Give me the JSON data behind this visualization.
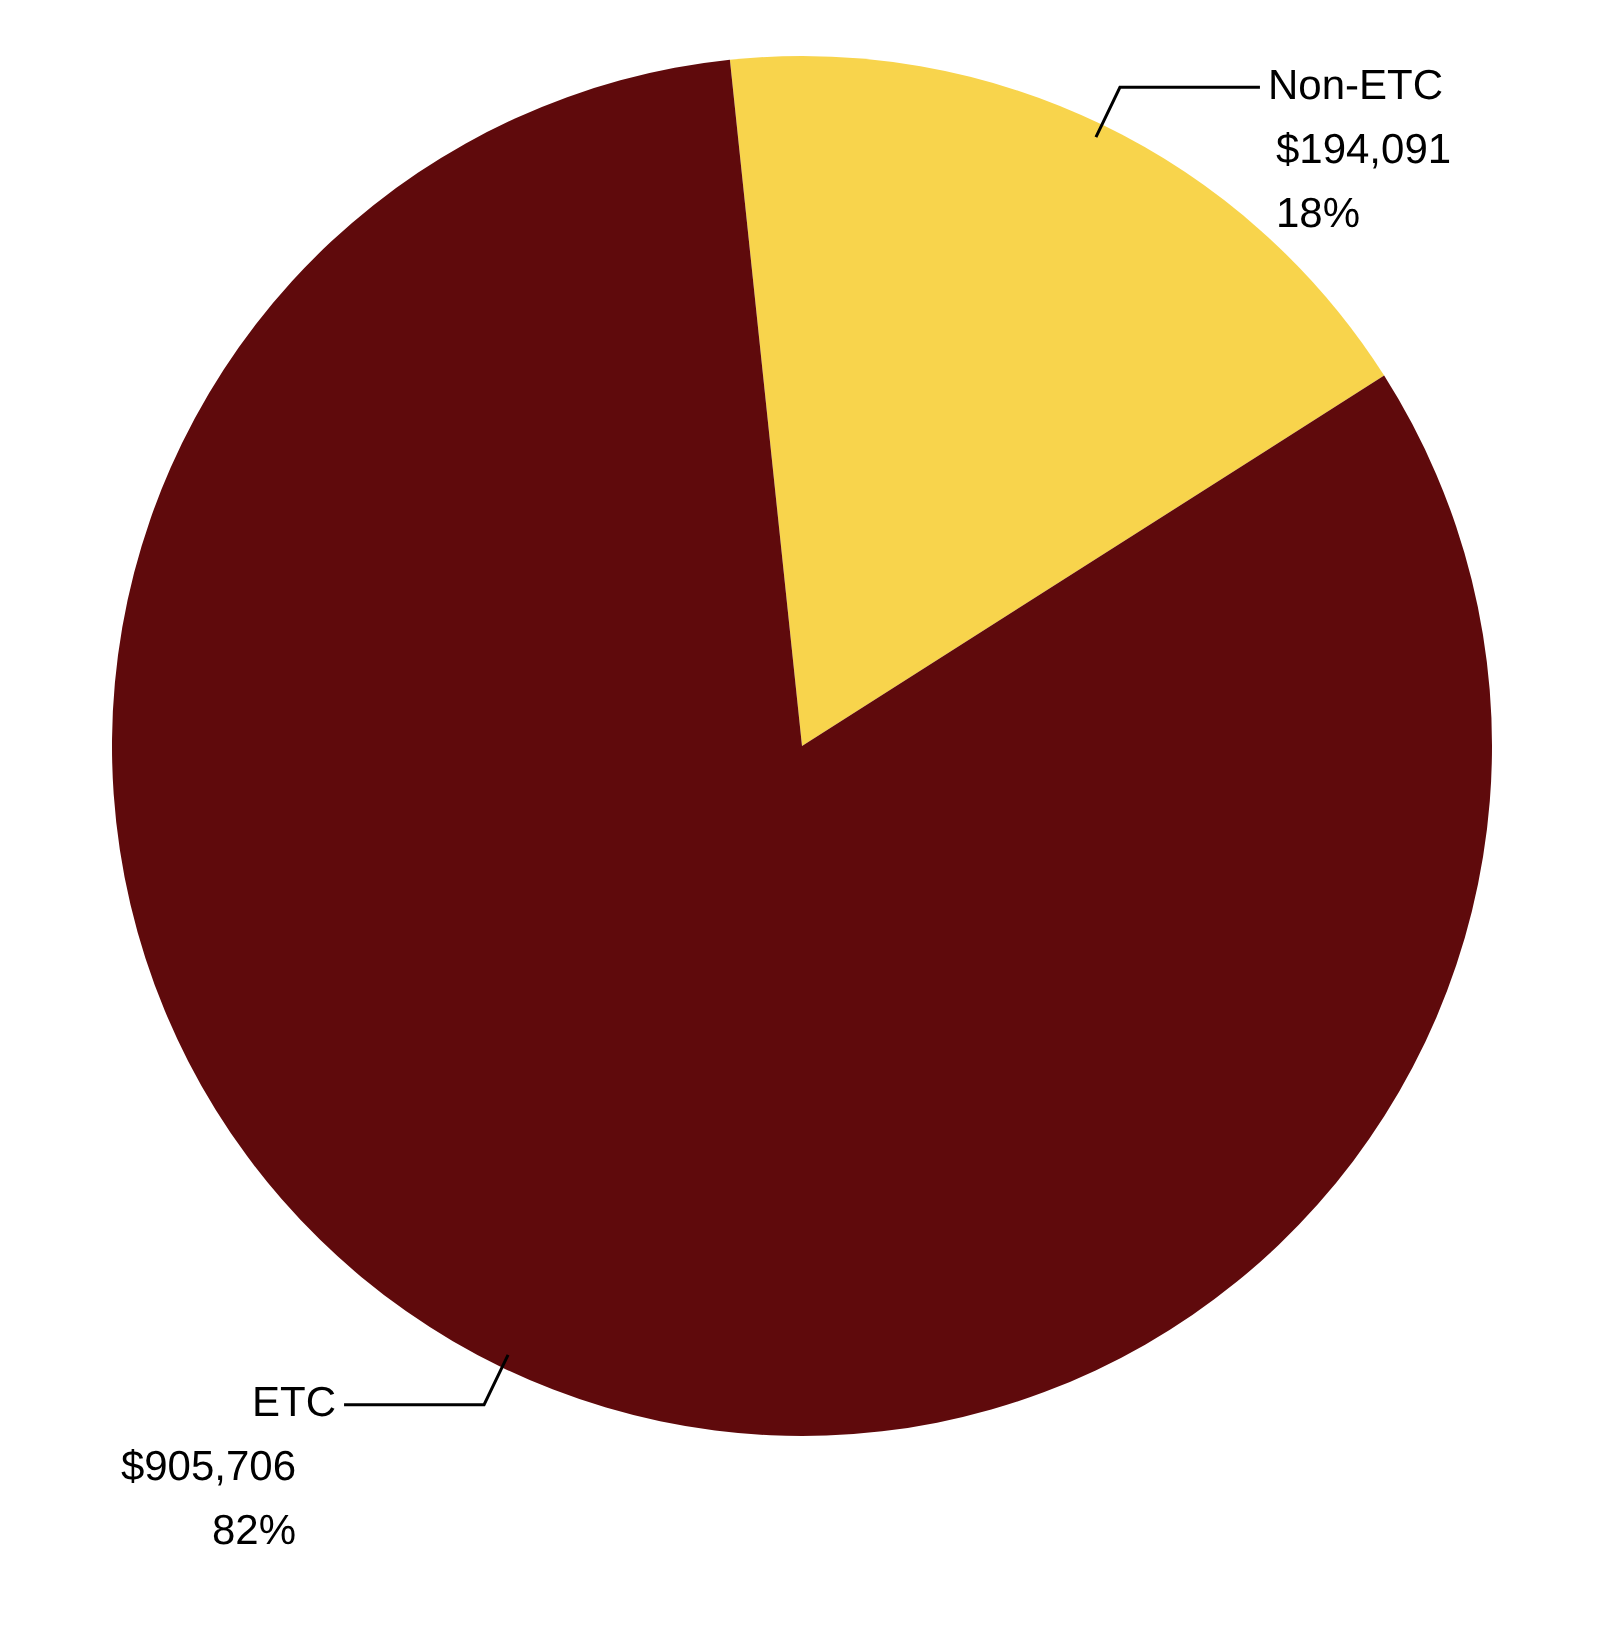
{
  "chart_data": {
    "type": "pie",
    "categories": [
      "Non-ETC",
      "ETC"
    ],
    "values": [
      194091,
      905706
    ],
    "colors": [
      "#f8d44c",
      "#5f0a0c"
    ],
    "value_labels": [
      "$194,091\n18%",
      "$905,706\n82%"
    ],
    "legend": false
  }
}
